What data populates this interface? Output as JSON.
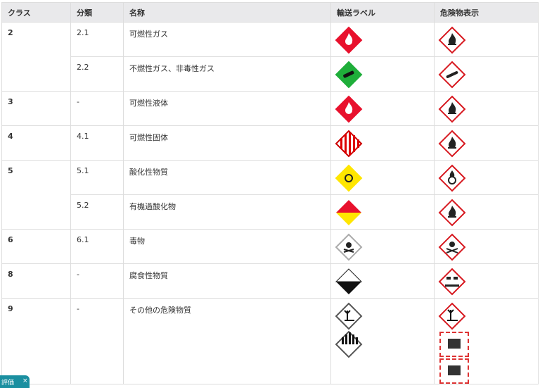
{
  "headers": [
    "クラス",
    "分類",
    "名称",
    "輸送ラベル",
    "危険物表示"
  ],
  "rows": [
    {
      "class": "2",
      "division": "2.1",
      "name": "可燃性ガス",
      "transport": [
        "flammable-gas-red"
      ],
      "ghs": [
        "ghs-flame"
      ]
    },
    {
      "class": "",
      "division": "2.2",
      "name": "不燃性ガス、非毒性ガス",
      "transport": [
        "gas-cylinder-green"
      ],
      "ghs": [
        "ghs-gas-cylinder"
      ]
    },
    {
      "class": "3",
      "division": "-",
      "name": "可燃性液体",
      "transport": [
        "flammable-liquid-red"
      ],
      "ghs": [
        "ghs-flame"
      ]
    },
    {
      "class": "4",
      "division": "4.1",
      "name": "可燃性固体",
      "transport": [
        "flammable-solid-stripes"
      ],
      "ghs": [
        "ghs-flame"
      ]
    },
    {
      "class": "5",
      "division": "5.1",
      "name": "酸化性物質",
      "transport": [
        "oxidizer-yellow"
      ],
      "ghs": [
        "ghs-flame-over-circle"
      ]
    },
    {
      "class": "",
      "division": "5.2",
      "name": "有機過酸化物",
      "transport": [
        "organic-peroxide-red-yellow"
      ],
      "ghs": [
        "ghs-flame"
      ]
    },
    {
      "class": "6",
      "division": "6.1",
      "name": "毒物",
      "transport": [
        "toxic-white"
      ],
      "ghs": [
        "ghs-skull"
      ]
    },
    {
      "class": "8",
      "division": "-",
      "name": "腐食性物質",
      "transport": [
        "corrosive-black-white"
      ],
      "ghs": [
        "ghs-corrosion"
      ]
    },
    {
      "class": "9",
      "division": "-",
      "name": "その他の危険物質",
      "transport": [
        "environment-white",
        "misc-stripes"
      ],
      "ghs": [
        "ghs-environment",
        "lithium-caution",
        "lithium-caution"
      ]
    }
  ],
  "badge": {
    "label": "評価",
    "close": "×"
  },
  "colors": {
    "header_bg": "#e9e9eb",
    "ghs_red": "#d71920",
    "badge": "#1a8fa0"
  }
}
